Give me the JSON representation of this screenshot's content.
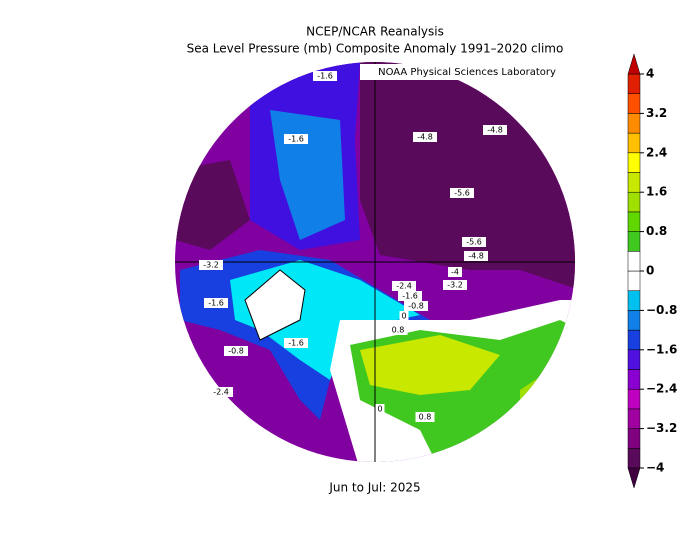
{
  "header": {
    "title": "NCEP/NCAR Reanalysis",
    "subtitle": "Sea Level Pressure (mb) Composite Anomaly 1991–2020 climo",
    "credit": "NOAA Physical Sciences Laboratory"
  },
  "footer": {
    "period": "Jun to Jul: 2025"
  },
  "contour_labels": [
    "-1.6",
    "-1.6",
    "-4.8",
    "-4.8",
    "-5.6",
    "-5.6",
    "-4.8",
    "-4",
    "-3.2",
    "-3.2",
    "-2.4",
    "-1.6",
    "-0.8",
    "0",
    "0.8",
    "-1.6",
    "-0.8",
    "-1.6",
    "-2.4",
    "0",
    "0.8"
  ],
  "colorbar": {
    "lim": [
      -4,
      4
    ],
    "ticks": [
      {
        "value": 4,
        "label": "4"
      },
      {
        "value": 3.2,
        "label": "3.2"
      },
      {
        "value": 2.4,
        "label": "2.4"
      },
      {
        "value": 1.6,
        "label": "1.6"
      },
      {
        "value": 0.8,
        "label": "0.8"
      },
      {
        "value": 0,
        "label": "0"
      },
      {
        "value": -0.8,
        "label": "−0.8"
      },
      {
        "value": -1.6,
        "label": "−1.6"
      },
      {
        "value": -2.4,
        "label": "−2.4"
      },
      {
        "value": -3.2,
        "label": "−3.2"
      },
      {
        "value": -4,
        "label": "−4"
      }
    ],
    "colors": [
      "#5a0a5a",
      "#800080",
      "#a000a0",
      "#c000c0",
      "#8a00d0",
      "#5010e0",
      "#1840e0",
      "#1080e8",
      "#00c0f0",
      "#ffffff",
      "#ffffff",
      "#40c820",
      "#60d800",
      "#a0e000",
      "#c8e800",
      "#ffff00",
      "#ffc000",
      "#ff8c00",
      "#ff5000",
      "#e02000"
    ],
    "under_color": "#400040",
    "over_color": "#c00000"
  }
}
